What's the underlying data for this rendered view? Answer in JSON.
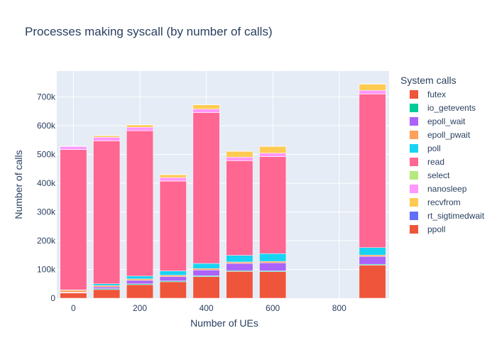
{
  "chart_data": {
    "type": "bar",
    "stacked": true,
    "title": "Processes making syscall (by number of calls)",
    "xlabel": "Number of UEs",
    "ylabel": "Number of calls",
    "x": [
      0,
      100,
      200,
      300,
      400,
      500,
      600,
      900
    ],
    "xlim": [
      -50,
      950
    ],
    "ylim": [
      0,
      790000
    ],
    "x_ticks": [
      0,
      200,
      400,
      600,
      800
    ],
    "x_tick_labels": [
      "0",
      "200",
      "400",
      "600",
      "800"
    ],
    "y_ticks": [
      0,
      100000,
      200000,
      300000,
      400000,
      500000,
      600000,
      700000
    ],
    "y_tick_labels": [
      "0",
      "100k",
      "200k",
      "300k",
      "400k",
      "500k",
      "600k",
      "700k"
    ],
    "grid": true,
    "legend_title": "System calls",
    "legend_position": "right",
    "series": [
      {
        "name": "futex",
        "color": "#EF553B",
        "values": [
          18000,
          30000,
          47000,
          57000,
          75000,
          93000,
          92000,
          115000
        ]
      },
      {
        "name": "io_getevents",
        "color": "#00CC96",
        "values": [
          1000,
          3000,
          3000,
          3000,
          3000,
          3000,
          3000,
          3000
        ]
      },
      {
        "name": "epoll_wait",
        "color": "#AB63FA",
        "values": [
          2000,
          6000,
          12000,
          15000,
          20000,
          25000,
          28000,
          27000
        ]
      },
      {
        "name": "epoll_pwait",
        "color": "#FFA15A",
        "values": [
          7000,
          5000,
          5000,
          5000,
          5000,
          5000,
          5000,
          5000
        ]
      },
      {
        "name": "poll",
        "color": "#19D3F3",
        "values": [
          1000,
          6000,
          10000,
          15000,
          18000,
          23000,
          27000,
          26000
        ]
      },
      {
        "name": "read",
        "color": "#FF6692",
        "values": [
          488000,
          497000,
          505000,
          312000,
          524000,
          329000,
          337000,
          534000
        ]
      },
      {
        "name": "select",
        "color": "#B6E880",
        "values": [
          500,
          500,
          500,
          500,
          500,
          500,
          500,
          500
        ]
      },
      {
        "name": "nanosleep",
        "color": "#FF97FF",
        "values": [
          10000,
          12000,
          12000,
          12000,
          12000,
          12000,
          12000,
          12000
        ]
      },
      {
        "name": "recvfrom",
        "color": "#FECB52",
        "values": [
          1000,
          5000,
          8000,
          10000,
          15000,
          20000,
          23000,
          22000
        ]
      },
      {
        "name": "rt_sigtimedwait",
        "color": "#636EFA",
        "values": [
          500,
          500,
          500,
          500,
          500,
          500,
          500,
          500
        ]
      },
      {
        "name": "ppoll",
        "color": "#EF553B",
        "values": [
          500,
          500,
          500,
          500,
          500,
          500,
          500,
          500
        ]
      }
    ]
  }
}
